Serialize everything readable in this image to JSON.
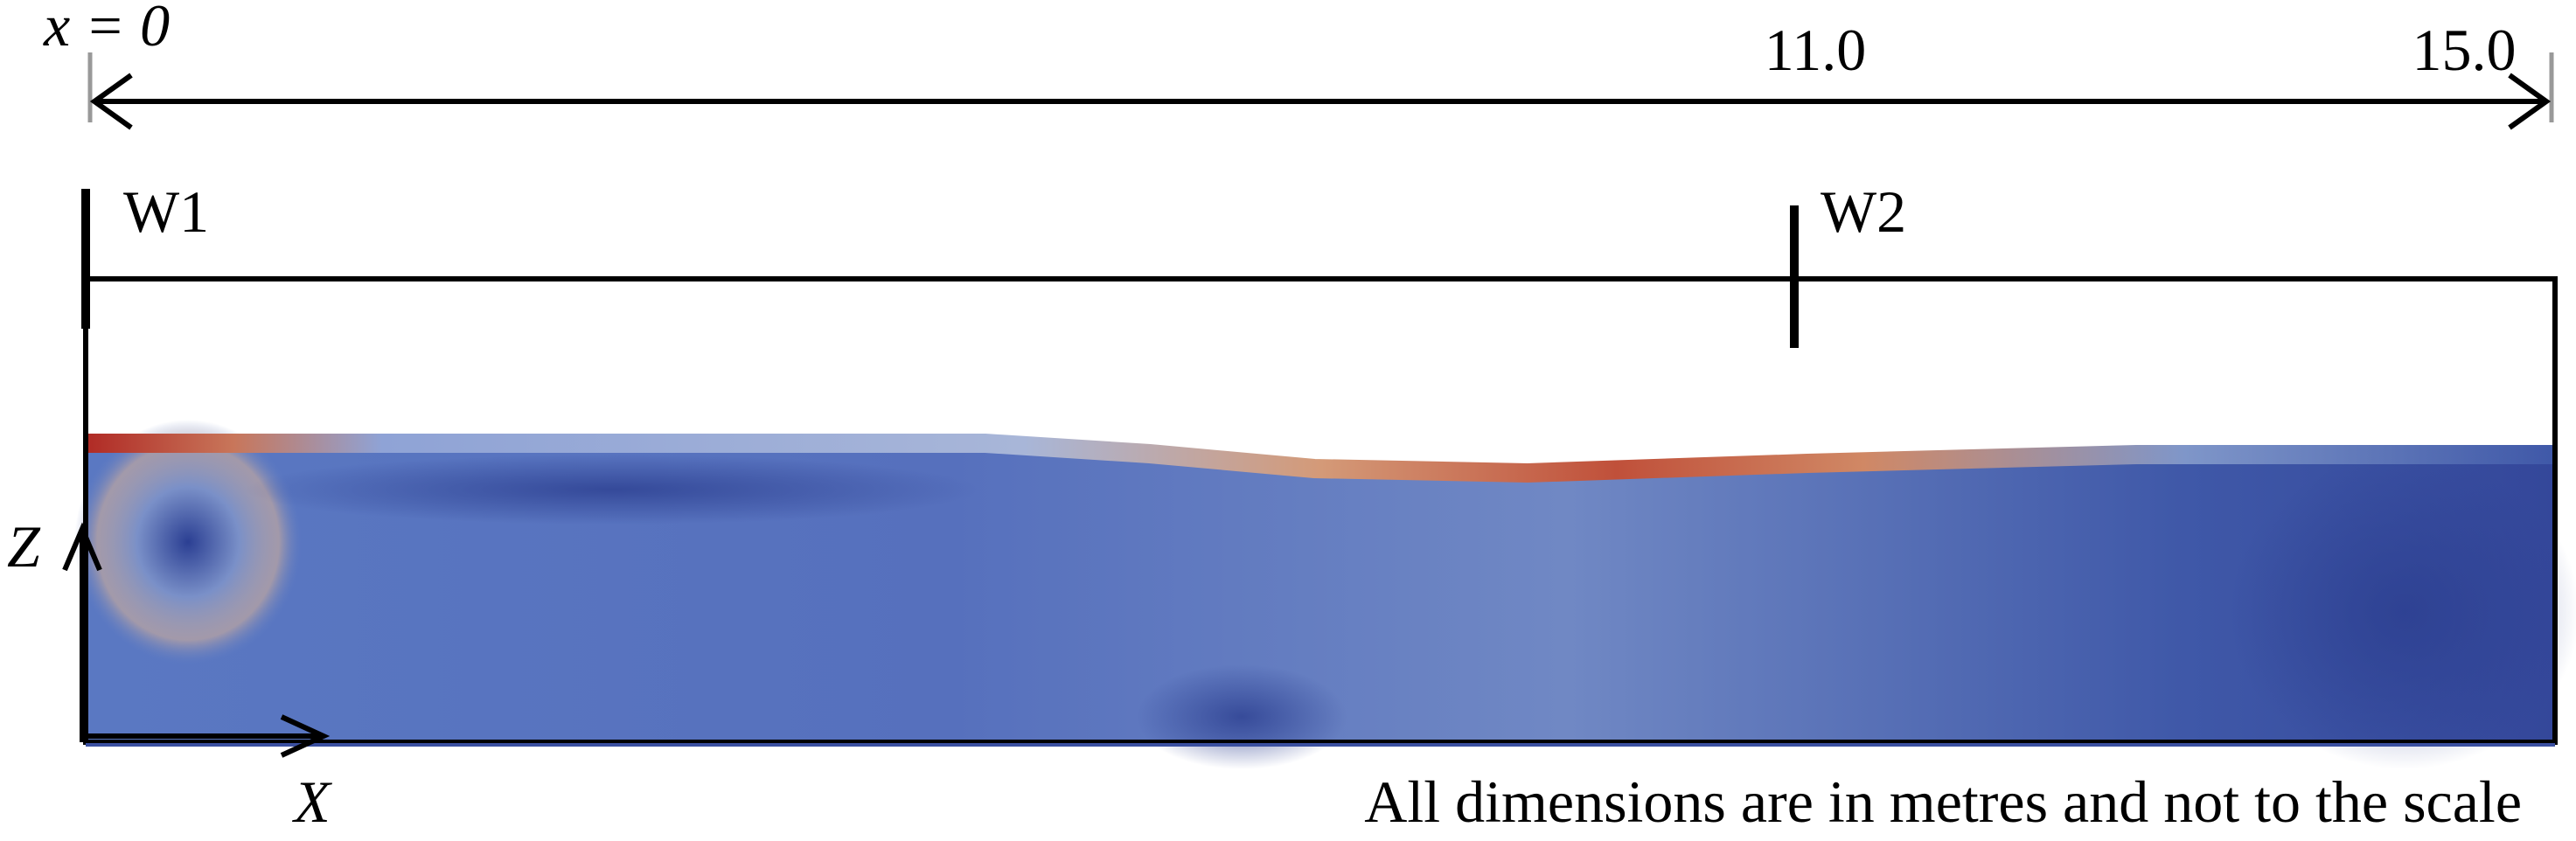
{
  "dimension": {
    "start_label": "x = 0",
    "mark_label": "11.0",
    "end_label": "15.0"
  },
  "walls": {
    "w1": "W1",
    "w2": "W2"
  },
  "axes": {
    "z": "Z",
    "x": "X"
  },
  "note": "All dimensions are in metres and not to the scale"
}
